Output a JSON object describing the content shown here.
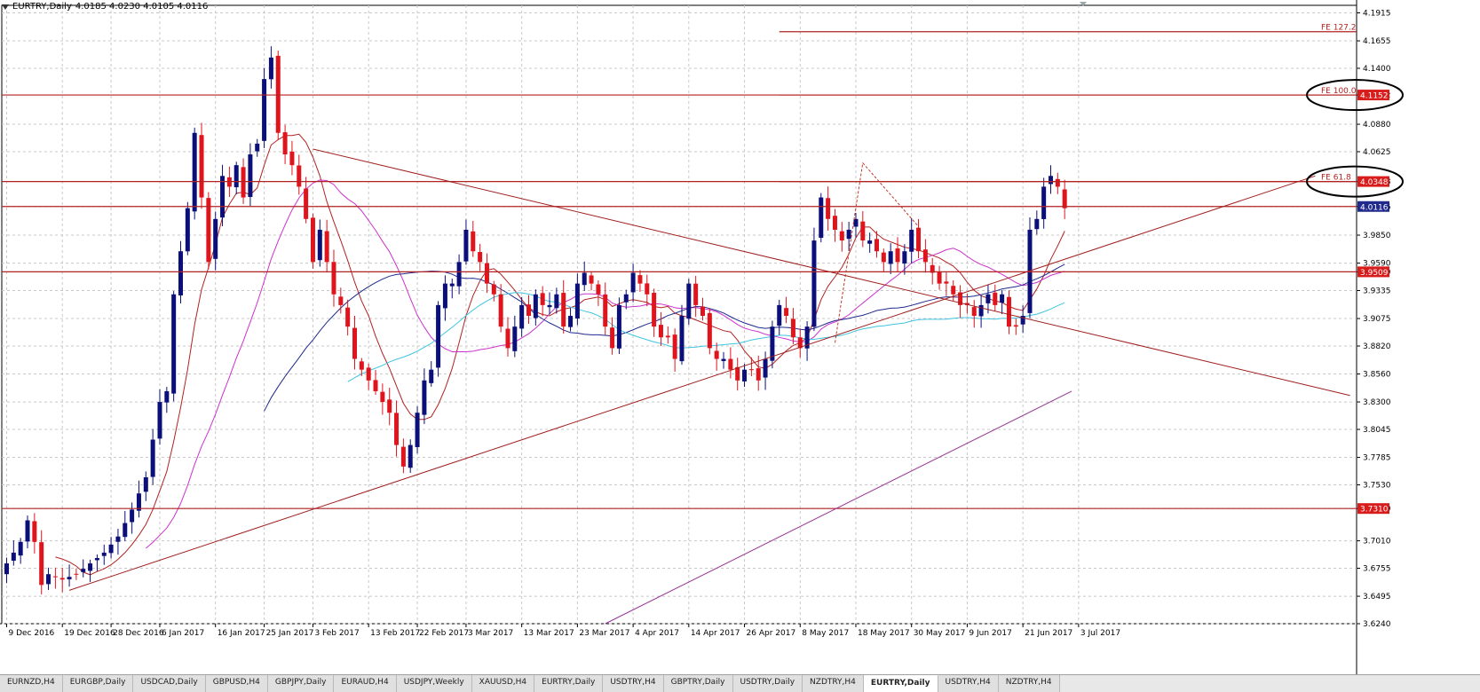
{
  "header": {
    "title": "EURTRY,Daily",
    "ohlc": "4.0185 4.0230 4.0105 4.0116"
  },
  "colors": {
    "bull": "#0a0f7a",
    "bear": "#e0141c",
    "level": "#b22222",
    "trend": "#a01f1f",
    "ma_fast": "#b22222",
    "ma_mid": "#cc33cc",
    "ma_slow": "#1f2a8c",
    "ma_cyan": "#40c4e0",
    "channel": "#993399",
    "grid": "#c8c8c8"
  },
  "tabs": [
    {
      "label": "EURNZD,H4",
      "active": false
    },
    {
      "label": "EURGBP,Daily",
      "active": false
    },
    {
      "label": "USDCAD,Daily",
      "active": false
    },
    {
      "label": "GBPUSD,H4",
      "active": false
    },
    {
      "label": "GBPJPY,Daily",
      "active": false
    },
    {
      "label": "EURAUD,H4",
      "active": false
    },
    {
      "label": "USDJPY,Weekly",
      "active": false
    },
    {
      "label": "XAUUSD,H4",
      "active": false
    },
    {
      "label": "EURTRY,Daily",
      "active": false
    },
    {
      "label": "USDTRY,H4",
      "active": false
    },
    {
      "label": "GBPTRY,Daily",
      "active": false
    },
    {
      "label": "USDTRY,Daily",
      "active": false
    },
    {
      "label": "NZDTRY,H4",
      "active": false
    },
    {
      "label": "EURTRY,Daily",
      "active": true
    },
    {
      "label": "USDTRY,H4",
      "active": false
    },
    {
      "label": "NZDTRY,H4",
      "active": false
    }
  ],
  "chart_data": {
    "type": "candlestick",
    "symbol": "EURTRY",
    "timeframe": "Daily",
    "ylim": [
      3.624,
      4.1985
    ],
    "y_ticks": [
      "4.1915",
      "4.1655",
      "4.1400",
      "4.1152",
      "4.0880",
      "4.0625",
      "4.0348",
      "4.0116",
      "3.9850",
      "3.9590",
      "3.9509",
      "3.9335",
      "3.9075",
      "3.8820",
      "3.8560",
      "3.8300",
      "3.8045",
      "3.7785",
      "3.7530",
      "3.7310",
      "3.7010",
      "3.6755",
      "3.6495",
      "3.6240"
    ],
    "x_labels": [
      {
        "label": "9 Dec 2016",
        "index": 0
      },
      {
        "label": "19 Dec 2016",
        "index": 8
      },
      {
        "label": "28 Dec 2016",
        "index": 15
      },
      {
        "label": "6 Jan 2017",
        "index": 22
      },
      {
        "label": "16 Jan 2017",
        "index": 30
      },
      {
        "label": "25 Jan 2017",
        "index": 37
      },
      {
        "label": "3 Feb 2017",
        "index": 44
      },
      {
        "label": "13 Feb 2017",
        "index": 52
      },
      {
        "label": "22 Feb 2017",
        "index": 59
      },
      {
        "label": "3 Mar 2017",
        "index": 66
      },
      {
        "label": "13 Mar 2017",
        "index": 74
      },
      {
        "label": "23 Mar 2017",
        "index": 82
      },
      {
        "label": "4 Apr 2017",
        "index": 90
      },
      {
        "label": "14 Apr 2017",
        "index": 98
      },
      {
        "label": "26 Apr 2017",
        "index": 106
      },
      {
        "label": "8 May 2017",
        "index": 114
      },
      {
        "label": "18 May 2017",
        "index": 122
      },
      {
        "label": "30 May 2017",
        "index": 130
      },
      {
        "label": "9 Jun 2017",
        "index": 138
      },
      {
        "label": "21 Jun 2017",
        "index": 146
      },
      {
        "label": "3 Jul 2017",
        "index": 154
      }
    ],
    "close_path": [
      [
        0,
        3.68
      ],
      [
        2,
        3.7
      ],
      [
        3,
        3.72
      ],
      [
        4,
        3.7
      ],
      [
        5,
        3.66
      ],
      [
        6,
        3.67
      ],
      [
        8,
        3.665
      ],
      [
        10,
        3.67
      ],
      [
        12,
        3.68
      ],
      [
        14,
        3.69
      ],
      [
        16,
        3.705
      ],
      [
        18,
        3.73
      ],
      [
        20,
        3.76
      ],
      [
        22,
        3.83
      ],
      [
        23,
        3.84
      ],
      [
        24,
        3.93
      ],
      [
        26,
        4.01
      ],
      [
        27,
        4.08
      ],
      [
        28,
        4.02
      ],
      [
        29,
        3.96
      ],
      [
        31,
        4.04
      ],
      [
        32,
        4.03
      ],
      [
        33,
        4.05
      ],
      [
        34,
        4.02
      ],
      [
        35,
        4.06
      ],
      [
        36,
        4.07
      ],
      [
        37,
        4.13
      ],
      [
        38,
        4.15
      ],
      [
        39,
        4.08
      ],
      [
        40,
        4.06
      ],
      [
        41,
        4.05
      ],
      [
        42,
        4.03
      ],
      [
        43,
        4.0
      ],
      [
        44,
        3.96
      ],
      [
        45,
        3.99
      ],
      [
        46,
        3.96
      ],
      [
        47,
        3.93
      ],
      [
        48,
        3.92
      ],
      [
        49,
        3.9
      ],
      [
        50,
        3.87
      ],
      [
        51,
        3.86
      ],
      [
        52,
        3.85
      ],
      [
        53,
        3.84
      ],
      [
        55,
        3.82
      ],
      [
        56,
        3.79
      ],
      [
        57,
        3.77
      ],
      [
        58,
        3.79
      ],
      [
        59,
        3.82
      ],
      [
        60,
        3.85
      ],
      [
        61,
        3.86
      ],
      [
        62,
        3.92
      ],
      [
        63,
        3.94
      ],
      [
        64,
        3.94
      ],
      [
        65,
        3.96
      ],
      [
        66,
        3.99
      ],
      [
        67,
        3.97
      ],
      [
        68,
        3.96
      ],
      [
        69,
        3.94
      ],
      [
        70,
        3.93
      ],
      [
        71,
        3.9
      ],
      [
        72,
        3.88
      ],
      [
        73,
        3.9
      ],
      [
        74,
        3.92
      ],
      [
        75,
        3.91
      ],
      [
        76,
        3.93
      ],
      [
        77,
        3.92
      ],
      [
        78,
        3.92
      ],
      [
        79,
        3.93
      ],
      [
        80,
        3.9
      ],
      [
        81,
        3.91
      ],
      [
        82,
        3.94
      ],
      [
        83,
        3.95
      ],
      [
        84,
        3.94
      ],
      [
        85,
        3.93
      ],
      [
        86,
        3.9
      ],
      [
        87,
        3.88
      ],
      [
        88,
        3.92
      ],
      [
        89,
        3.93
      ],
      [
        90,
        3.95
      ],
      [
        91,
        3.94
      ],
      [
        92,
        3.93
      ],
      [
        93,
        3.9
      ],
      [
        94,
        3.89
      ],
      [
        95,
        3.89
      ],
      [
        96,
        3.87
      ],
      [
        97,
        3.91
      ],
      [
        98,
        3.94
      ],
      [
        99,
        3.92
      ],
      [
        100,
        3.91
      ],
      [
        101,
        3.88
      ],
      [
        102,
        3.87
      ],
      [
        103,
        3.87
      ],
      [
        104,
        3.86
      ],
      [
        105,
        3.85
      ],
      [
        106,
        3.86
      ],
      [
        107,
        3.86
      ],
      [
        108,
        3.85
      ],
      [
        109,
        3.87
      ],
      [
        110,
        3.9
      ],
      [
        111,
        3.92
      ],
      [
        112,
        3.91
      ],
      [
        113,
        3.89
      ],
      [
        114,
        3.88
      ],
      [
        115,
        3.9
      ],
      [
        116,
        3.98
      ],
      [
        117,
        4.02
      ],
      [
        118,
        4.0
      ],
      [
        119,
        3.99
      ],
      [
        120,
        3.98
      ],
      [
        121,
        3.99
      ],
      [
        122,
        4.0
      ],
      [
        123,
        3.98
      ],
      [
        124,
        3.98
      ],
      [
        125,
        3.97
      ],
      [
        126,
        3.96
      ],
      [
        127,
        3.97
      ],
      [
        128,
        3.96
      ],
      [
        129,
        3.97
      ],
      [
        130,
        3.99
      ],
      [
        131,
        3.97
      ],
      [
        132,
        3.96
      ],
      [
        133,
        3.95
      ],
      [
        134,
        3.94
      ],
      [
        135,
        3.94
      ],
      [
        136,
        3.93
      ],
      [
        137,
        3.92
      ],
      [
        138,
        3.92
      ],
      [
        139,
        3.91
      ],
      [
        140,
        3.92
      ],
      [
        141,
        3.93
      ],
      [
        142,
        3.92
      ],
      [
        143,
        3.93
      ],
      [
        144,
        3.9
      ],
      [
        145,
        3.9
      ],
      [
        146,
        3.91
      ],
      [
        147,
        3.99
      ],
      [
        148,
        4.0
      ],
      [
        149,
        4.03
      ],
      [
        150,
        4.04
      ],
      [
        151,
        4.03
      ],
      [
        152,
        4.01
      ]
    ],
    "levels": [
      {
        "price": 4.1152,
        "label": "4.1152",
        "style": "red-box"
      },
      {
        "price": 4.0348,
        "label": "4.0348",
        "style": "red-box"
      },
      {
        "price": 4.0116,
        "label": "4.0116",
        "style": "navy-box"
      },
      {
        "price": 3.9509,
        "label": "3.9509",
        "style": "red-box"
      },
      {
        "price": 3.731,
        "label": "3.7310",
        "style": "red-box"
      }
    ],
    "fibo_expansion": [
      {
        "label": "FE 127.2",
        "price": 4.174
      },
      {
        "label": "FE 100.0",
        "price": 4.1152
      },
      {
        "label": "FE 61.8",
        "price": 4.0348
      }
    ],
    "trendlines": [
      {
        "name": "upper-wedge",
        "from": [
          44,
          4.065
        ],
        "to": [
          193,
          3.836
        ]
      },
      {
        "name": "lower-wedge",
        "from": [
          9,
          3.655
        ],
        "to": [
          188,
          4.04
        ]
      }
    ],
    "channel_line": {
      "from": [
        86,
        3.624
      ],
      "to": [
        153,
        3.84
      ]
    },
    "zigzag": [
      [
        119,
        3.885
      ],
      [
        123,
        4.052
      ],
      [
        131,
        3.993
      ]
    ],
    "highlight_ellipses": [
      {
        "price": 4.1152
      },
      {
        "price": 4.0348
      }
    ]
  }
}
